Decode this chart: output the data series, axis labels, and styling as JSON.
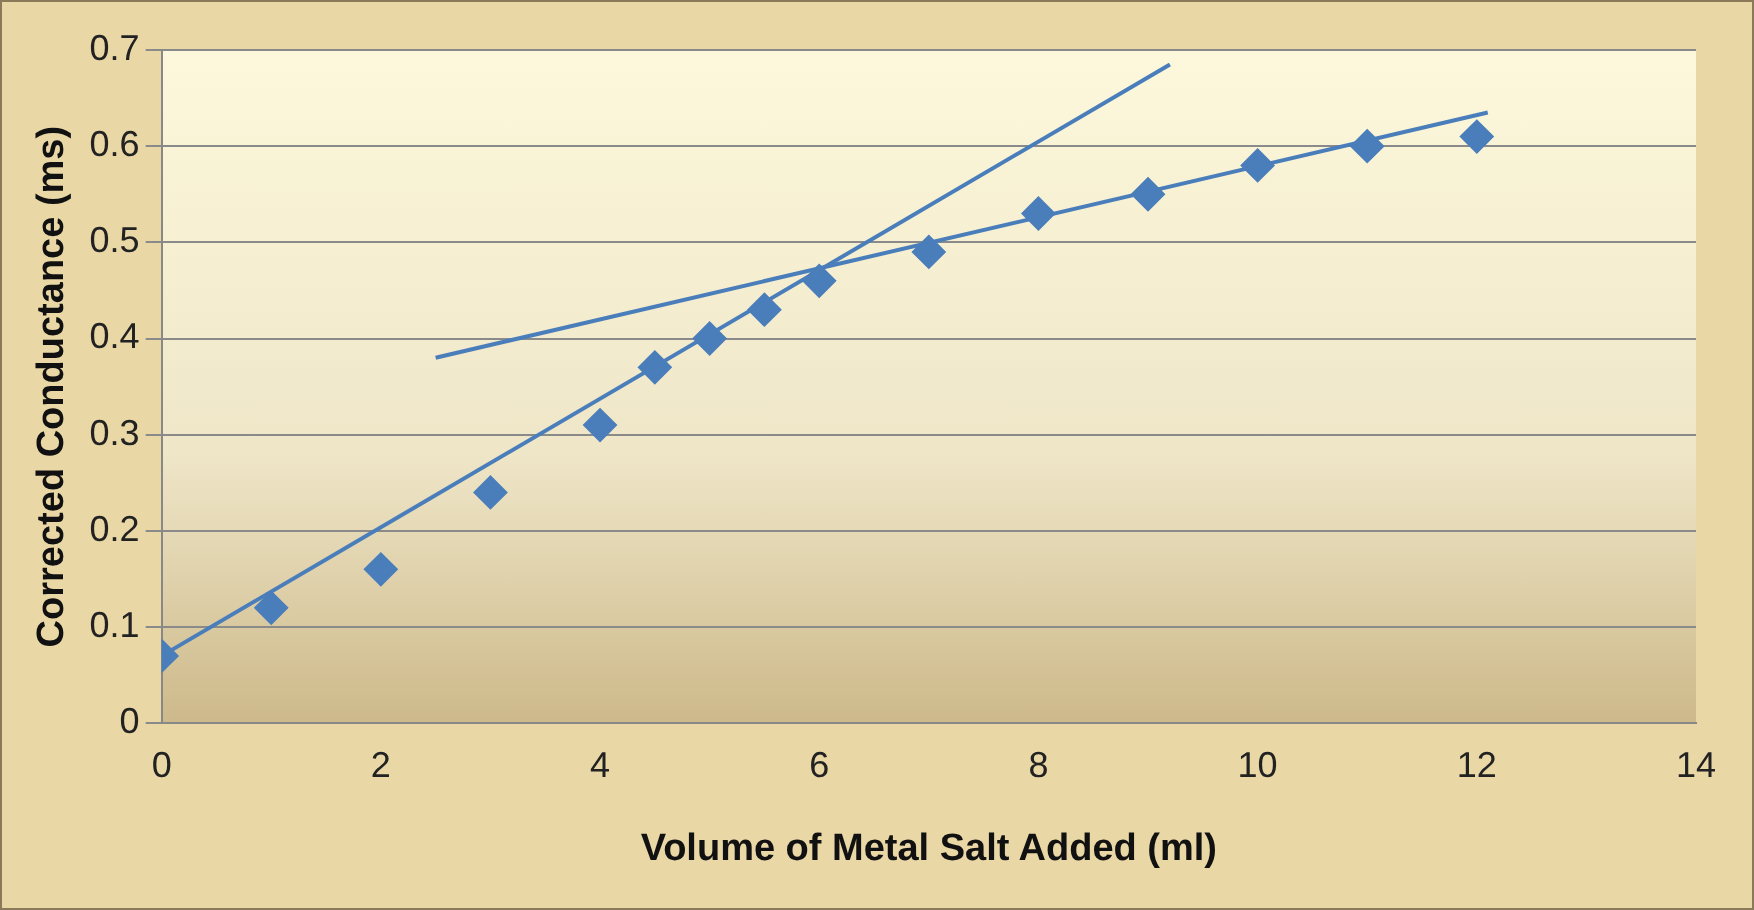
{
  "chart_data": {
    "type": "scatter",
    "xlabel": "Volume of Metal Salt Added (ml)",
    "ylabel": "Corrected Conductance (ms)",
    "xlim": [
      0,
      14
    ],
    "xticks": [
      0,
      2,
      4,
      6,
      8,
      10,
      12,
      14
    ],
    "ylim": [
      0,
      0.7
    ],
    "yticks": [
      0,
      0.1,
      0.2,
      0.3,
      0.4,
      0.5,
      0.6,
      0.7
    ],
    "grid": "y",
    "legend": false,
    "series": [
      {
        "type": "scatter",
        "color": "#4a7ebb",
        "marker": "diamond",
        "x": [
          0,
          1,
          2,
          3,
          4,
          4.5,
          5,
          5.5,
          6,
          7,
          8,
          9,
          10,
          11,
          12
        ],
        "values": [
          0.07,
          0.12,
          0.16,
          0.24,
          0.31,
          0.37,
          0.4,
          0.43,
          0.46,
          0.49,
          0.53,
          0.55,
          0.58,
          0.6,
          0.61
        ]
      },
      {
        "type": "line",
        "color": "#4a7ebb",
        "marker": "none",
        "x": [
          0,
          9.2
        ],
        "values": [
          0.07,
          0.685
        ]
      },
      {
        "type": "line",
        "color": "#4a7ebb",
        "marker": "none",
        "x": [
          2.5,
          12.1
        ],
        "values": [
          0.38,
          0.635
        ]
      }
    ]
  }
}
